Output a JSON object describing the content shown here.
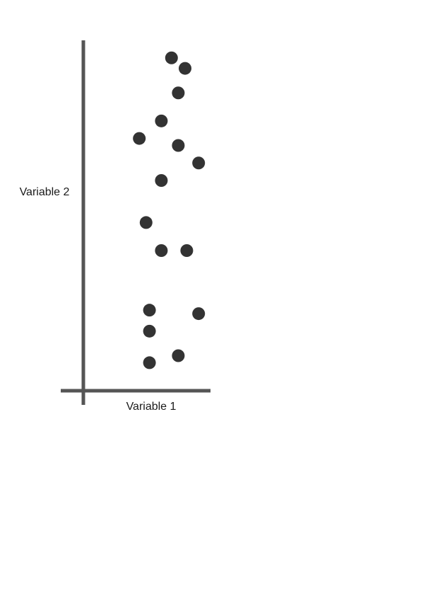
{
  "colors": {
    "axis": "#555555",
    "point": "#333333",
    "text": "#1a1a1a",
    "background": "#ffffff"
  },
  "chart_data": {
    "type": "scatter",
    "title": "",
    "xlabel": "Variable 1",
    "ylabel": "Variable 2",
    "xlim": [
      0,
      10
    ],
    "ylim": [
      0,
      10
    ],
    "grid": false,
    "legend": "none",
    "x_ticks": [],
    "y_ticks": [],
    "series": [
      {
        "x": [
          5.2,
          6.0,
          5.6,
          4.6,
          3.3,
          5.6,
          6.8,
          4.6,
          3.7,
          4.6,
          6.1,
          3.9,
          6.8,
          3.9,
          5.6,
          3.9
        ],
        "y": [
          9.5,
          9.2,
          8.5,
          7.7,
          7.2,
          7.0,
          6.5,
          6.0,
          4.8,
          4.0,
          4.0,
          2.3,
          2.2,
          1.7,
          1.0,
          0.8
        ]
      }
    ]
  }
}
